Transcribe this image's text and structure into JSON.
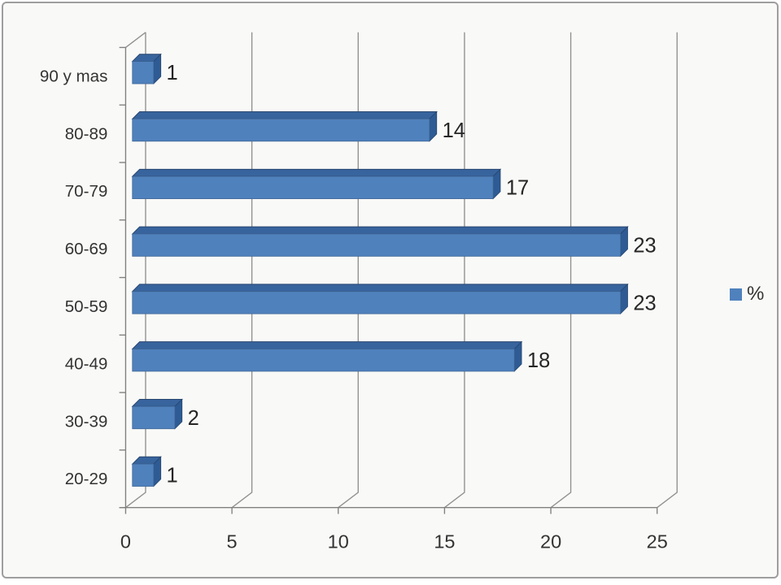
{
  "chart_data": {
    "type": "bar",
    "orientation": "horizontal",
    "style": "3d",
    "title": "",
    "xlabel": "",
    "ylabel": "",
    "categories": [
      "90 y mas",
      "80-89",
      "70-79",
      "60-69",
      "50-59",
      "40-49",
      "30-39",
      "20-29"
    ],
    "series": [
      {
        "name": "%",
        "values": [
          1,
          14,
          17,
          23,
          23,
          18,
          2,
          1
        ]
      }
    ],
    "data_labels_visible": true,
    "x_ticks": [
      "0",
      "5",
      "10",
      "15",
      "20",
      "25"
    ],
    "xlim": [
      0,
      25
    ],
    "grid": true,
    "legend": {
      "label": "%",
      "position": "right"
    },
    "colors": {
      "bar_front": "#4f81bd",
      "bar_top": "#38649e",
      "bar_side": "#2e5b94",
      "bar_edge": "#27466f",
      "bar_front_edge": "#3e6695",
      "gridline": "#919191",
      "axis_line": "#808080",
      "text": "#333333",
      "data_label_text": "#262626",
      "frame_border": "#9e9e9e",
      "background": "#f9f9f7"
    }
  }
}
